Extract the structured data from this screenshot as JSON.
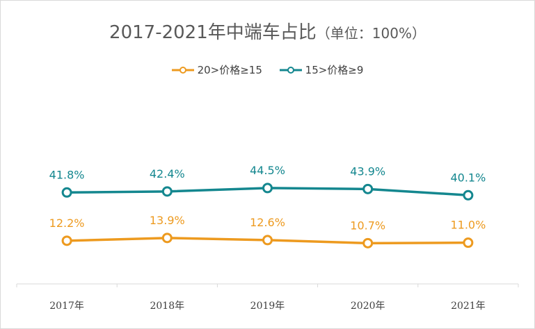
{
  "chart_data": {
    "type": "line",
    "title": "2017-2021年中端车占比",
    "title_unit": "（单位：100%）",
    "categories": [
      "2017年",
      "2018年",
      "2019年",
      "2020年",
      "2021年"
    ],
    "series": [
      {
        "name": "20>价格≥15",
        "color": "#ED9A1F",
        "values": [
          12.2,
          13.9,
          12.6,
          10.7,
          11.0
        ],
        "labels": [
          "12.2%",
          "13.9%",
          "12.6%",
          "10.7%",
          "11.0%"
        ]
      },
      {
        "name": "15>价格≥9",
        "color": "#14878F",
        "values": [
          41.8,
          42.4,
          44.5,
          43.9,
          40.1
        ],
        "labels": [
          "41.8%",
          "42.4%",
          "44.5%",
          "43.9%",
          "40.1%"
        ]
      }
    ],
    "legend_position": "top",
    "grid": false
  }
}
